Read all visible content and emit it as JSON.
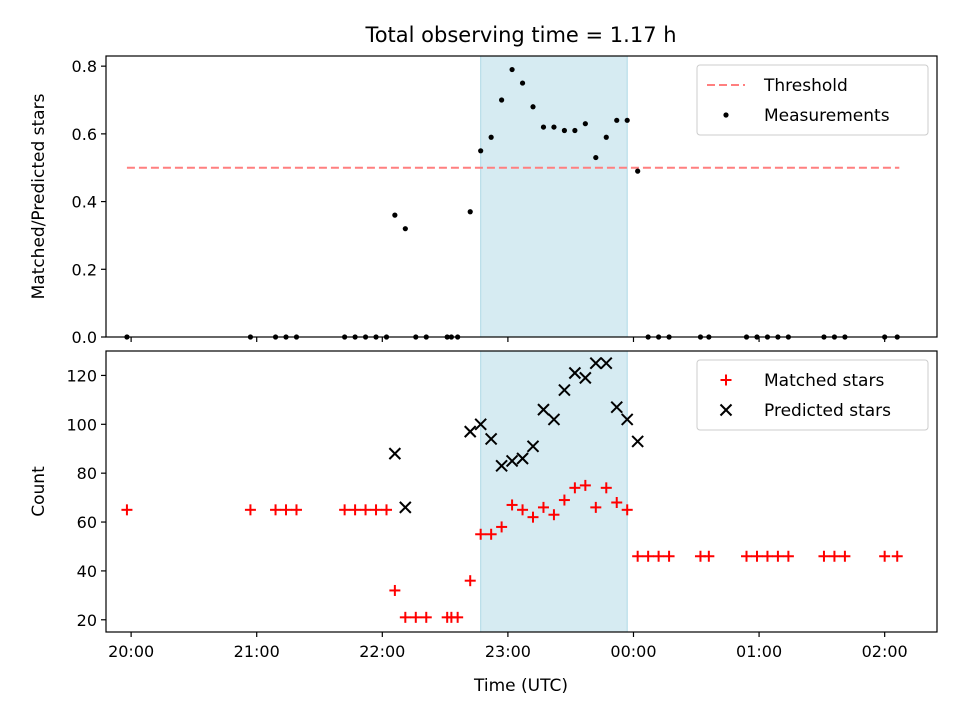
{
  "figure": {
    "title": "Total observing time = 1.17 h",
    "xlabel": "Time (UTC)"
  },
  "chart_data": [
    {
      "type": "scatter",
      "ylabel": "Matched/Predicted stars",
      "ylim": [
        0,
        0.83
      ],
      "yticks": [
        0.0,
        0.2,
        0.4,
        0.6,
        0.8
      ],
      "ytick_labels": [
        "0.0",
        "0.2",
        "0.4",
        "0.6",
        "0.8"
      ],
      "xlim": [
        "19:48",
        "02:25"
      ],
      "xticks": [
        "20:00",
        "21:00",
        "22:00",
        "23:00",
        "00:00",
        "01:00",
        "02:00"
      ],
      "shaded_span": [
        "22:47",
        "23:57"
      ],
      "legend_position": "upper right",
      "threshold": {
        "name": "Threshold",
        "y": 0.5,
        "x_range": [
          "19:58",
          "02:07"
        ],
        "color": "#ff7f7f",
        "style": "dashed"
      },
      "series": [
        {
          "name": "Measurements",
          "marker": "dot",
          "color": "#000000",
          "points": [
            [
              "19:58",
              0.0
            ],
            [
              "20:57",
              0.0
            ],
            [
              "21:09",
              0.0
            ],
            [
              "21:14",
              0.0
            ],
            [
              "21:19",
              0.0
            ],
            [
              "21:42",
              0.0
            ],
            [
              "21:47",
              0.0
            ],
            [
              "21:52",
              0.0
            ],
            [
              "21:57",
              0.0
            ],
            [
              "22:02",
              0.0
            ],
            [
              "22:06",
              0.36
            ],
            [
              "22:11",
              0.32
            ],
            [
              "22:16",
              0.0
            ],
            [
              "22:21",
              0.0
            ],
            [
              "22:31",
              0.0
            ],
            [
              "22:33",
              0.0
            ],
            [
              "22:36",
              0.0
            ],
            [
              "22:42",
              0.37
            ],
            [
              "22:47",
              0.55
            ],
            [
              "22:52",
              0.59
            ],
            [
              "22:57",
              0.7
            ],
            [
              "23:02",
              0.79
            ],
            [
              "23:07",
              0.75
            ],
            [
              "23:12",
              0.68
            ],
            [
              "23:17",
              0.62
            ],
            [
              "23:22",
              0.62
            ],
            [
              "23:27",
              0.61
            ],
            [
              "23:32",
              0.61
            ],
            [
              "23:37",
              0.63
            ],
            [
              "23:42",
              0.53
            ],
            [
              "23:47",
              0.59
            ],
            [
              "23:52",
              0.64
            ],
            [
              "23:57",
              0.64
            ],
            [
              "00:02",
              0.49
            ],
            [
              "00:07",
              0.0
            ],
            [
              "00:12",
              0.0
            ],
            [
              "00:17",
              0.0
            ],
            [
              "00:32",
              0.0
            ],
            [
              "00:36",
              0.0
            ],
            [
              "00:54",
              0.0
            ],
            [
              "00:59",
              0.0
            ],
            [
              "01:04",
              0.0
            ],
            [
              "01:09",
              0.0
            ],
            [
              "01:14",
              0.0
            ],
            [
              "01:31",
              0.0
            ],
            [
              "01:36",
              0.0
            ],
            [
              "01:41",
              0.0
            ],
            [
              "02:00",
              0.0
            ],
            [
              "02:06",
              0.0
            ]
          ]
        }
      ]
    },
    {
      "type": "scatter",
      "ylabel": "Count",
      "ylim": [
        15,
        130
      ],
      "yticks": [
        20,
        40,
        60,
        80,
        100,
        120
      ],
      "ytick_labels": [
        "20",
        "40",
        "60",
        "80",
        "100",
        "120"
      ],
      "xlim": [
        "19:48",
        "02:25"
      ],
      "xticks": [
        "20:00",
        "21:00",
        "22:00",
        "23:00",
        "00:00",
        "01:00",
        "02:00"
      ],
      "xtick_labels": [
        "20:00",
        "21:00",
        "22:00",
        "23:00",
        "00:00",
        "01:00",
        "02:00"
      ],
      "shaded_span": [
        "22:47",
        "23:57"
      ],
      "legend_position": "upper right",
      "series": [
        {
          "name": "Matched stars",
          "marker": "plus",
          "color": "#ff0000",
          "points": [
            [
              "19:58",
              65
            ],
            [
              "20:57",
              65
            ],
            [
              "21:09",
              65
            ],
            [
              "21:14",
              65
            ],
            [
              "21:19",
              65
            ],
            [
              "21:42",
              65
            ],
            [
              "21:47",
              65
            ],
            [
              "21:52",
              65
            ],
            [
              "21:57",
              65
            ],
            [
              "22:02",
              65
            ],
            [
              "22:06",
              32
            ],
            [
              "22:11",
              21
            ],
            [
              "22:16",
              21
            ],
            [
              "22:21",
              21
            ],
            [
              "22:31",
              21
            ],
            [
              "22:33",
              21
            ],
            [
              "22:36",
              21
            ],
            [
              "22:42",
              36
            ],
            [
              "22:47",
              55
            ],
            [
              "22:52",
              55
            ],
            [
              "22:57",
              58
            ],
            [
              "23:02",
              67
            ],
            [
              "23:07",
              65
            ],
            [
              "23:12",
              62
            ],
            [
              "23:17",
              66
            ],
            [
              "23:22",
              63
            ],
            [
              "23:27",
              69
            ],
            [
              "23:32",
              74
            ],
            [
              "23:37",
              75
            ],
            [
              "23:42",
              66
            ],
            [
              "23:47",
              74
            ],
            [
              "23:52",
              68
            ],
            [
              "23:57",
              65
            ],
            [
              "00:02",
              46
            ],
            [
              "00:07",
              46
            ],
            [
              "00:12",
              46
            ],
            [
              "00:17",
              46
            ],
            [
              "00:32",
              46
            ],
            [
              "00:36",
              46
            ],
            [
              "00:54",
              46
            ],
            [
              "00:59",
              46
            ],
            [
              "01:04",
              46
            ],
            [
              "01:09",
              46
            ],
            [
              "01:14",
              46
            ],
            [
              "01:31",
              46
            ],
            [
              "01:36",
              46
            ],
            [
              "01:41",
              46
            ],
            [
              "02:00",
              46
            ],
            [
              "02:06",
              46
            ]
          ]
        },
        {
          "name": "Predicted stars",
          "marker": "x",
          "color": "#000000",
          "points": [
            [
              "22:06",
              88
            ],
            [
              "22:11",
              66
            ],
            [
              "22:42",
              97
            ],
            [
              "22:47",
              100
            ],
            [
              "22:52",
              94
            ],
            [
              "22:57",
              83
            ],
            [
              "23:02",
              85
            ],
            [
              "23:07",
              86
            ],
            [
              "23:12",
              91
            ],
            [
              "23:17",
              106
            ],
            [
              "23:22",
              102
            ],
            [
              "23:27",
              114
            ],
            [
              "23:32",
              121
            ],
            [
              "23:37",
              119
            ],
            [
              "23:42",
              125
            ],
            [
              "23:47",
              125
            ],
            [
              "23:52",
              107
            ],
            [
              "23:57",
              102
            ],
            [
              "00:02",
              93
            ]
          ]
        }
      ]
    }
  ]
}
